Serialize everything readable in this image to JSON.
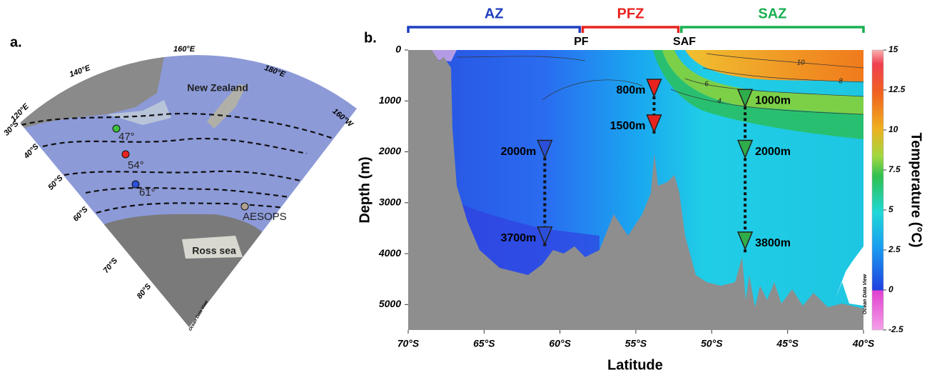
{
  "panel_a": {
    "label": "a.",
    "lon_labels": [
      "160°E",
      "140°E",
      "180°E",
      "120°E",
      "160°W"
    ],
    "lat_labels": [
      "30°S",
      "40°S",
      "50°S",
      "60°S",
      "70°S",
      "80°S"
    ],
    "place_labels": [
      "New Zealand",
      "Ross sea"
    ],
    "site_labels": [
      "47°",
      "54°",
      "61°",
      "AESOPS"
    ],
    "watermark": "Ocean Data View"
  },
  "chart_data": {
    "type": "section",
    "panel_label": "b.",
    "xlabel": "Latitude",
    "ylabel": "Depth (m)",
    "colorbar_label": "Temperature (°C)",
    "xlim": [
      -70,
      -40
    ],
    "xticks": [
      {
        "value": -70,
        "label": "70°S"
      },
      {
        "value": -65,
        "label": "65°S"
      },
      {
        "value": -60,
        "label": "60°S"
      },
      {
        "value": -55,
        "label": "55°S"
      },
      {
        "value": -50,
        "label": "50°S"
      },
      {
        "value": -45,
        "label": "45°S"
      },
      {
        "value": -40,
        "label": "40°S"
      }
    ],
    "ylim": [
      5500,
      0
    ],
    "yticks": [
      0,
      1000,
      2000,
      3000,
      4000,
      5000
    ],
    "clim": [
      -2.5,
      15
    ],
    "cticks": [
      15,
      12.5,
      10,
      7.5,
      5,
      2.5,
      0,
      -2.5
    ],
    "zones": [
      {
        "name": "AZ",
        "color": "#1f3fbf",
        "range": [
          -70,
          -58.7
        ]
      },
      {
        "name": "PFZ",
        "color": "#e8231f",
        "range": [
          -58.5,
          -52.2
        ]
      },
      {
        "name": "SAZ",
        "color": "#19b050",
        "range": [
          -52,
          -40
        ]
      }
    ],
    "fronts": [
      {
        "name": "PF",
        "lat": -58.6
      },
      {
        "name": "SAF",
        "lat": -51.8
      }
    ],
    "moorings": [
      {
        "lat": -61,
        "color": "#2b4fd8",
        "depths": [
          2000,
          3700
        ],
        "depth_labels": [
          "2000m",
          "3700m"
        ],
        "side": "left"
      },
      {
        "lat": -53.8,
        "color": "#e8231f",
        "depths": [
          800,
          1500
        ],
        "depth_labels": [
          "800m",
          "1500m"
        ],
        "side": "left"
      },
      {
        "lat": -47.8,
        "color": "#2fae4a",
        "depths": [
          1000,
          2000,
          3800
        ],
        "depth_labels": [
          "1000m",
          "2000m",
          "3800m"
        ],
        "side": "right"
      }
    ],
    "contour_labels": [
      10,
      8,
      6,
      4
    ],
    "watermark": "Ocean Data View"
  }
}
